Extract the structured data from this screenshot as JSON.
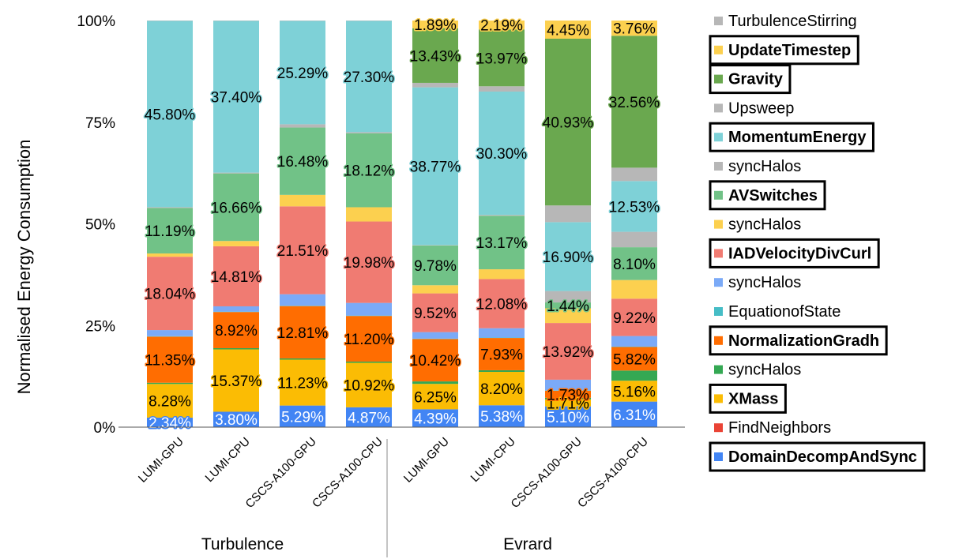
{
  "chart_data": {
    "type": "bar",
    "stacked": true,
    "normalized": true,
    "ylabel": "Normalised Energy Consumption",
    "yticks": [
      "0%",
      "25%",
      "50%",
      "75%",
      "100%"
    ],
    "ylim": [
      0,
      100
    ],
    "groups": [
      {
        "label": "Turbulence",
        "categories": [
          "LUMI-GPU",
          "LUMI-CPU",
          "CSCS-A100-GPU",
          "CSCS-A100-CPU"
        ]
      },
      {
        "label": "Evrard",
        "categories": [
          "LUMI-GPU",
          "LUMI-CPU",
          "CSCS-A100-GPU",
          "CSCS-A100-CPU"
        ]
      }
    ],
    "categories": [
      "LUMI-GPU",
      "LUMI-CPU",
      "CSCS-A100-GPU",
      "CSCS-A100-CPU",
      "LUMI-GPU",
      "LUMI-CPU",
      "CSCS-A100-GPU",
      "CSCS-A100-CPU"
    ],
    "series": [
      {
        "name": "DomainDecompAndSync",
        "color": "#4285f4",
        "bold": true,
        "values": [
          2.34,
          3.8,
          5.29,
          4.87,
          4.39,
          5.38,
          5.1,
          6.31
        ],
        "labels": [
          "2.34%",
          "3.80%",
          "5.29%",
          "4.87%",
          "4.39%",
          "5.38%",
          "5.10%",
          "6.31%"
        ]
      },
      {
        "name": "FindNeighbors",
        "color": "#ea4335",
        "bold": false,
        "values": [
          0.0,
          0.0,
          0.0,
          0.0,
          0.0,
          0.0,
          0.0,
          0.0
        ],
        "labels": [
          null,
          null,
          null,
          null,
          null,
          null,
          null,
          null
        ]
      },
      {
        "name": "XMass",
        "color": "#fbbc04",
        "bold": true,
        "values": [
          8.28,
          15.37,
          11.23,
          10.92,
          6.25,
          8.2,
          1.71,
          5.16
        ],
        "labels": [
          "8.28%",
          "15.37%",
          "11.23%",
          "10.92%",
          "6.25%",
          "8.20%",
          "1.71%",
          "5.16%"
        ]
      },
      {
        "name": "syncHalos",
        "color": "#34a853",
        "bold": false,
        "values": [
          0.3,
          0.3,
          0.3,
          0.3,
          0.6,
          0.4,
          0.4,
          2.5
        ],
        "labels": [
          null,
          null,
          null,
          null,
          null,
          null,
          null,
          null
        ]
      },
      {
        "name": "NormalizationGradh",
        "color": "#ff6d01",
        "bold": true,
        "values": [
          11.35,
          8.92,
          12.81,
          11.2,
          10.42,
          7.93,
          1.73,
          5.82
        ],
        "labels": [
          "11.35%",
          "8.92%",
          "12.81%",
          "11.20%",
          "10.42%",
          "7.93%",
          "1.73%",
          "5.82%"
        ]
      },
      {
        "name": "EquationofState",
        "color": "#46bdc6",
        "bold": false,
        "values": [
          0.1,
          0.1,
          0.1,
          0.1,
          0.1,
          0.1,
          0.1,
          0.1
        ],
        "labels": [
          null,
          null,
          null,
          null,
          null,
          null,
          null,
          null
        ]
      },
      {
        "name": "syncHalos",
        "color": "#7baaf7",
        "bold": false,
        "values": [
          1.5,
          1.3,
          2.8,
          3.1,
          1.6,
          2.3,
          2.6,
          2.6
        ],
        "labels": [
          null,
          null,
          null,
          null,
          null,
          null,
          null,
          null
        ]
      },
      {
        "name": "IADVelocityDivCurl",
        "color": "#f07b72",
        "bold": true,
        "values": [
          18.04,
          14.81,
          21.51,
          19.98,
          9.52,
          12.08,
          13.92,
          9.22
        ],
        "labels": [
          "18.04%",
          "14.81%",
          "21.51%",
          "19.98%",
          "9.52%",
          "12.08%",
          "13.92%",
          "9.22%"
        ]
      },
      {
        "name": "syncHalos",
        "color": "#fcd04f",
        "bold": false,
        "values": [
          0.8,
          1.3,
          2.8,
          3.5,
          2.0,
          2.4,
          3.6,
          4.6
        ],
        "labels": [
          null,
          null,
          null,
          null,
          null,
          null,
          null,
          null
        ]
      },
      {
        "name": "AVSwitches",
        "color": "#71c287",
        "bold": true,
        "values": [
          11.19,
          16.66,
          16.48,
          18.12,
          9.78,
          13.17,
          1.44,
          8.1
        ],
        "labels": [
          "11.19%",
          "16.66%",
          "16.48%",
          "18.12%",
          "9.78%",
          "13.17%",
          "1.44%",
          "8.10%"
        ]
      },
      {
        "name": "syncHalos",
        "color": "#b7b7b7",
        "bold": false,
        "values": [
          0.2,
          0.2,
          0.8,
          0.3,
          0.1,
          0.2,
          2.8,
          3.8
        ],
        "labels": [
          null,
          null,
          null,
          null,
          null,
          null,
          null,
          null
        ]
      },
      {
        "name": "MomentumEnergy",
        "color": "#7ed1d7",
        "bold": true,
        "values": [
          45.8,
          37.4,
          25.29,
          27.3,
          38.77,
          30.3,
          16.9,
          12.53
        ],
        "labels": [
          "45.80%",
          "37.40%",
          "25.29%",
          "27.30%",
          "38.77%",
          "30.30%",
          "16.90%",
          "12.53%"
        ]
      },
      {
        "name": "Upsweep",
        "color": "#b7b7b7",
        "bold": false,
        "values": [
          0.1,
          0.1,
          0.1,
          0.1,
          1.1,
          1.3,
          4.1,
          3.3
        ],
        "labels": [
          null,
          null,
          null,
          null,
          null,
          null,
          null,
          null
        ]
      },
      {
        "name": "Gravity",
        "color": "#6aa84f",
        "bold": true,
        "values": [
          0.0,
          0.0,
          0.0,
          0.0,
          13.43,
          13.97,
          40.93,
          32.56
        ],
        "labels": [
          null,
          null,
          null,
          null,
          "13.43%",
          "13.97%",
          "40.93%",
          "32.56%"
        ]
      },
      {
        "name": "UpdateTimestep",
        "color": "#fcd04f",
        "bold": true,
        "values": [
          0.0,
          0.0,
          0.0,
          0.0,
          1.89,
          2.19,
          4.45,
          3.76
        ],
        "labels": [
          null,
          null,
          null,
          null,
          "1.89%",
          "2.19%",
          "4.45%",
          "3.76%"
        ]
      },
      {
        "name": "TurbulenceStirring",
        "color": "#b7b7b7",
        "bold": false,
        "values": [
          0.0,
          0.0,
          0.0,
          0.0,
          0.0,
          0.0,
          0.0,
          0.0
        ],
        "labels": [
          null,
          null,
          null,
          null,
          null,
          null,
          null,
          null
        ]
      }
    ],
    "legend_position": "right",
    "legend_order": [
      "TurbulenceStirring",
      "UpdateTimestep",
      "Gravity",
      "Upsweep",
      "MomentumEnergy",
      "syncHalos",
      "AVSwitches",
      "syncHalos",
      "IADVelocityDivCurl",
      "syncHalos",
      "EquationofState",
      "NormalizationGradh",
      "syncHalos",
      "XMass",
      "FindNeighbors",
      "DomainDecompAndSync"
    ]
  }
}
